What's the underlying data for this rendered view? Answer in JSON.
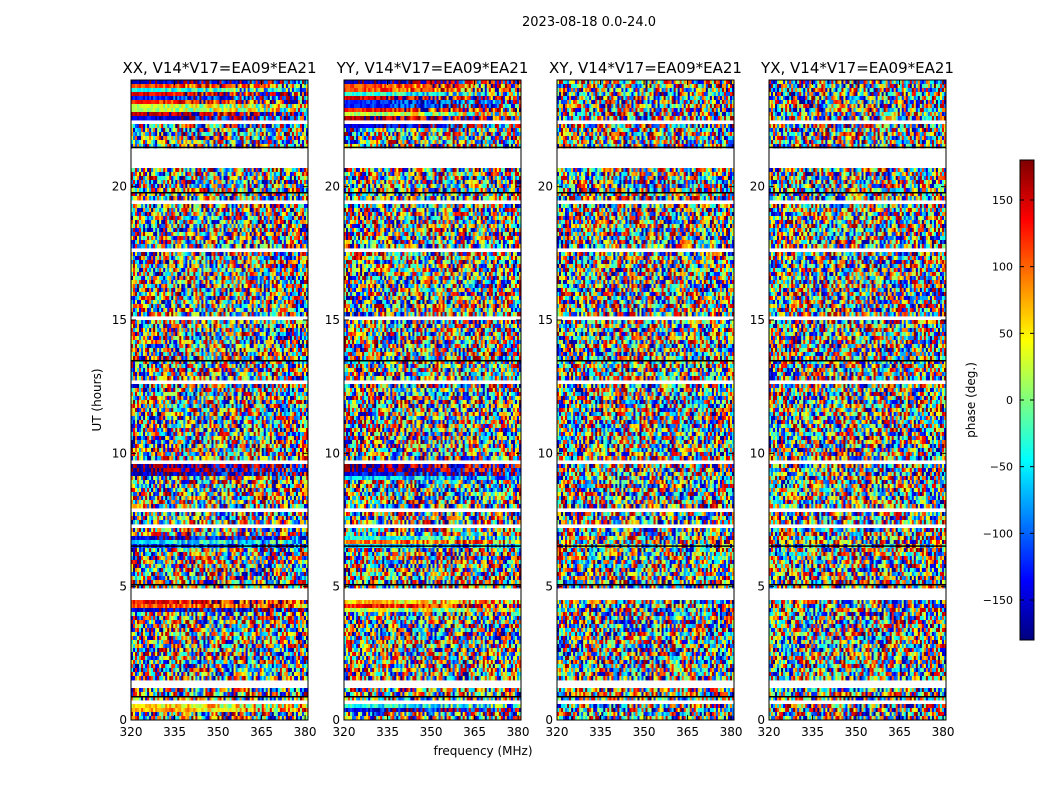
{
  "figure": {
    "suptitle": "2023-08-18 0.0-24.0",
    "xlabel": "frequency (MHz)",
    "ylabel": "UT (hours)"
  },
  "colorbar": {
    "label": "phase (deg.)",
    "range": [
      -180,
      180
    ],
    "ticks": [
      150,
      100,
      50,
      0,
      -50,
      -100,
      -150
    ],
    "tick_labels": [
      "150",
      "100",
      "50",
      "0",
      "−50",
      "−100",
      "−150"
    ],
    "colormap": "jet",
    "colors": [
      "#00007f",
      "#0000ff",
      "#007fff",
      "#00ffff",
      "#7fff7f",
      "#ffff00",
      "#ff7f00",
      "#ff0000",
      "#7f0000"
    ]
  },
  "chart_data": {
    "type": "heatmap",
    "x_range": [
      320,
      381
    ],
    "y_range": [
      0,
      24
    ],
    "x_ticks": [
      320,
      335,
      350,
      365,
      380
    ],
    "y_ticks": [
      0,
      5,
      10,
      15,
      20
    ],
    "grid": false,
    "panels": [
      {
        "title": "XX, V14*V17=EA09*EA21",
        "coherent_bands": [
          {
            "y0": 22.55,
            "y1": 24.0,
            "structured": true
          },
          {
            "y0": 9.2,
            "y1": 9.55,
            "structured": false
          },
          {
            "y0": 6.45,
            "y1": 6.95,
            "structured": false
          },
          {
            "y0": 4.0,
            "y1": 4.5,
            "structured": false
          },
          {
            "y0": 0.3,
            "y1": 0.7,
            "structured": false
          }
        ]
      },
      {
        "title": "YY, V14*V17=EA09*EA21",
        "coherent_bands": [
          {
            "y0": 22.2,
            "y1": 24.0,
            "structured": true
          },
          {
            "y0": 9.0,
            "y1": 9.6,
            "structured": false
          },
          {
            "y0": 6.4,
            "y1": 6.95,
            "structured": false
          },
          {
            "y0": 4.0,
            "y1": 4.5,
            "structured": false
          },
          {
            "y0": 0.3,
            "y1": 0.7,
            "structured": false
          }
        ]
      },
      {
        "title": "XY, V14*V17=EA09*EA21",
        "coherent_bands": []
      },
      {
        "title": "YX, V14*V17=EA09*EA21",
        "coherent_bands": []
      }
    ],
    "flagged_rows": [
      [
        0.3,
        0.35
      ],
      [
        0.6,
        0.68
      ],
      [
        0.98,
        1.05
      ],
      [
        1.25,
        1.45
      ],
      [
        1.8,
        1.85
      ],
      [
        2.2,
        2.26
      ],
      [
        2.95,
        3.0
      ],
      [
        3.45,
        3.5
      ],
      [
        4.55,
        4.9
      ],
      [
        5.25,
        5.32
      ],
      [
        6.3,
        6.36
      ],
      [
        7.25,
        7.3
      ],
      [
        7.8,
        7.88
      ],
      [
        8.55,
        8.6
      ],
      [
        9.65,
        9.7
      ],
      [
        10.3,
        10.38
      ],
      [
        11.05,
        11.1
      ],
      [
        12.55,
        12.68
      ],
      [
        14.05,
        14.1
      ],
      [
        15.05,
        15.2
      ],
      [
        15.6,
        15.65
      ],
      [
        16.3,
        16.36
      ],
      [
        17.05,
        17.1
      ],
      [
        17.6,
        17.65
      ],
      [
        18.4,
        18.45
      ],
      [
        19.3,
        19.45
      ],
      [
        20.7,
        21.4
      ],
      [
        22.35,
        22.45
      ]
    ],
    "black_rows": [
      [
        0.85,
        0.9
      ],
      [
        5.05,
        5.1
      ],
      [
        6.5,
        6.55
      ],
      [
        13.45,
        13.5
      ],
      [
        19.75,
        19.8
      ],
      [
        21.45,
        21.5
      ]
    ]
  }
}
